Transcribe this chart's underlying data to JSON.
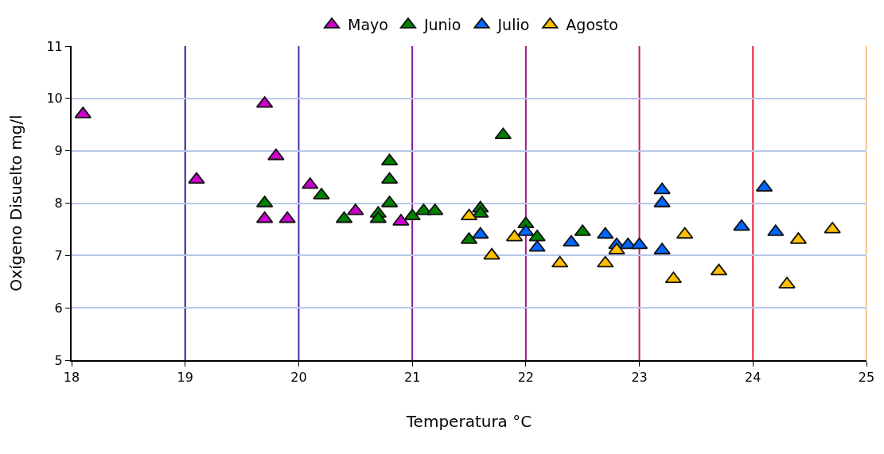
{
  "chart_data": {
    "type": "scatter",
    "xlabel": "Temperatura °C",
    "ylabel": "Oxígeno Disuelto mg/l",
    "xlim": [
      18,
      25
    ],
    "xticks": [
      18,
      19,
      20,
      21,
      22,
      23,
      24,
      25
    ],
    "ylim": [
      5,
      11
    ],
    "yticks": [
      5,
      6,
      7,
      8,
      9,
      10,
      11
    ],
    "grid": "y",
    "legend": "top",
    "marker": "triangle",
    "series": [
      {
        "name": "Mayo",
        "color": "#cc00cc",
        "x": [
          18.1,
          19.1,
          19.7,
          19.8,
          19.7,
          19.9,
          20.1,
          20.5,
          20.9
        ],
        "values": [
          9.7,
          8.45,
          9.9,
          8.9,
          7.7,
          7.7,
          8.35,
          7.85,
          7.65
        ]
      },
      {
        "name": "Junio",
        "color": "#008000",
        "x": [
          19.7,
          20.2,
          20.4,
          20.7,
          20.7,
          20.8,
          20.8,
          20.8,
          21.0,
          21.1,
          21.2,
          21.5,
          21.6,
          21.6,
          21.8,
          22.0,
          22.1,
          22.5
        ],
        "values": [
          8.0,
          8.15,
          7.7,
          7.8,
          7.7,
          8.8,
          8.45,
          8.0,
          7.75,
          7.85,
          7.85,
          7.3,
          7.9,
          7.8,
          9.3,
          7.6,
          7.35,
          7.45
        ]
      },
      {
        "name": "Julio",
        "color": "#0066ff",
        "x": [
          21.6,
          22.0,
          22.1,
          22.4,
          22.7,
          22.8,
          22.9,
          23.0,
          23.2,
          23.2,
          23.2,
          23.9,
          24.1,
          24.2
        ],
        "values": [
          7.4,
          7.45,
          7.15,
          7.25,
          7.4,
          7.2,
          7.2,
          7.2,
          8.25,
          8.0,
          7.1,
          7.55,
          8.3,
          7.45
        ]
      },
      {
        "name": "Agosto",
        "color": "#ffc000",
        "x": [
          21.5,
          21.7,
          21.9,
          22.3,
          22.7,
          22.8,
          23.3,
          23.4,
          23.7,
          24.3,
          24.4,
          24.7
        ],
        "values": [
          7.75,
          7.0,
          7.35,
          6.85,
          6.85,
          7.1,
          6.55,
          7.4,
          6.7,
          6.45,
          7.3,
          7.5
        ]
      }
    ],
    "ref_lines": [
      {
        "axis": "x",
        "value": 19,
        "color": "#20209a"
      },
      {
        "axis": "x",
        "value": 20,
        "color": "#5028a8"
      },
      {
        "axis": "x",
        "value": 21,
        "color": "#7a1a9a"
      },
      {
        "axis": "x",
        "value": 22,
        "color": "#9a1a8a"
      },
      {
        "axis": "x",
        "value": 23,
        "color": "#c8186a"
      },
      {
        "axis": "x",
        "value": 24,
        "color": "#e8203a"
      },
      {
        "axis": "x",
        "value": 25,
        "color": "#ff8c1a"
      }
    ]
  }
}
